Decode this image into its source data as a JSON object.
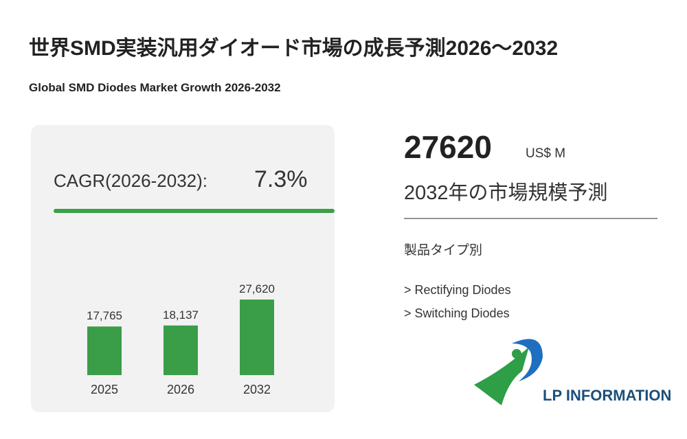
{
  "title": "世界SMD実装汎用ダイオード市場の成長予測2026～2032",
  "subtitle": "Global SMD Diodes Market Growth 2026-2032",
  "cagr": {
    "label": "CAGR(2026-2032):",
    "value": "7.3%"
  },
  "headline": {
    "value": "27620",
    "unit": "US$ M",
    "caption": "2032年の市場規模予測"
  },
  "segments": {
    "heading": "製品タイプ別",
    "items": [
      "> Rectifying Diodes",
      "> Switching Diodes"
    ]
  },
  "logo": "LP INFORMATION",
  "chart_data": {
    "type": "bar",
    "categories": [
      "2025",
      "2026",
      "2032"
    ],
    "values": [
      17765,
      18137,
      27620
    ],
    "value_labels": [
      "17,765",
      "18,137",
      "27,620"
    ],
    "color": "#3a9e48"
  }
}
